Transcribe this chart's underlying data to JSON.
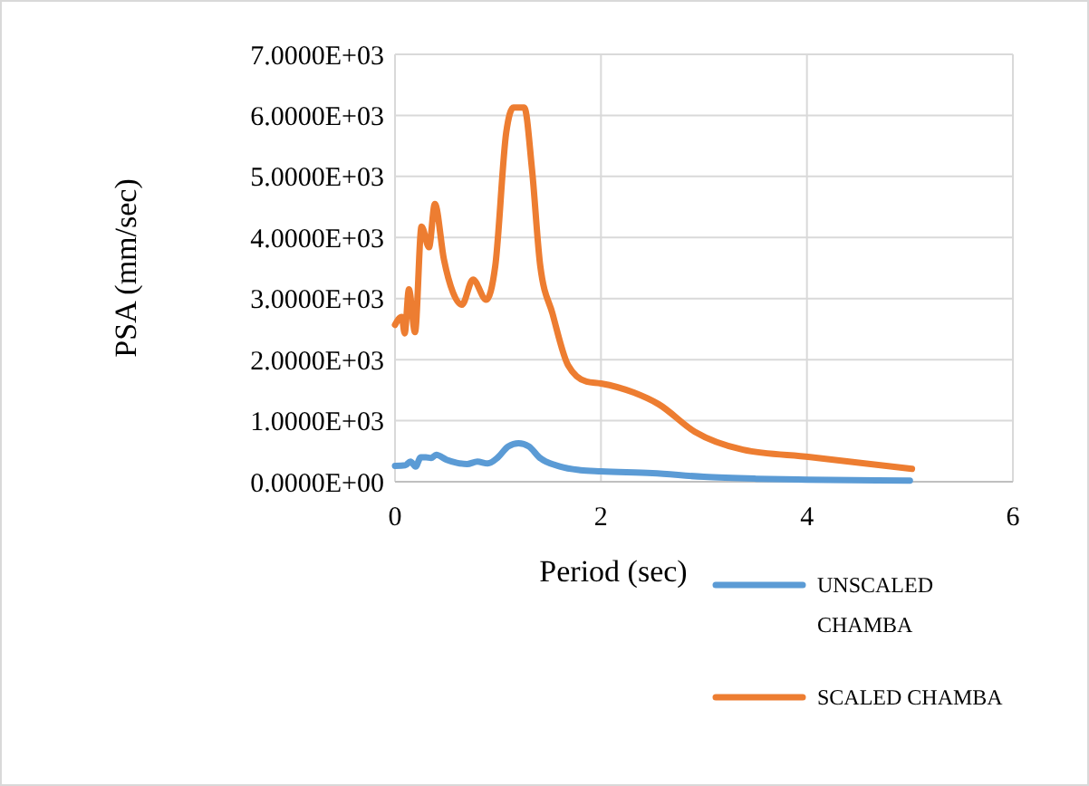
{
  "chart_data": {
    "type": "line",
    "xlabel": "Period (sec)",
    "ylabel": "PSA (mm/sec)",
    "xlim": [
      0,
      6
    ],
    "xticks": [
      0,
      2,
      4,
      6
    ],
    "ylim": [
      0,
      7000
    ],
    "yticks": [
      {
        "value": 0,
        "label": "0.0000E+00"
      },
      {
        "value": 1000,
        "label": "1.0000E+03"
      },
      {
        "value": 2000,
        "label": "2.0000E+03"
      },
      {
        "value": 3000,
        "label": "3.0000E+03"
      },
      {
        "value": 4000,
        "label": "4.0000E+03"
      },
      {
        "value": 5000,
        "label": "5.0000E+03"
      },
      {
        "value": 6000,
        "label": "6.0000E+03"
      },
      {
        "value": 7000,
        "label": "7.0000E+03"
      }
    ],
    "grid": true,
    "legend": "bottom right",
    "marker": "none",
    "line_style": "solid",
    "series": [
      {
        "name": "UNSCALED CHAMBA",
        "color": "#5b9bd5",
        "x": [
          0,
          0.1,
          0.15,
          0.2,
          0.25,
          0.3,
          0.35,
          0.4,
          0.5,
          0.6,
          0.7,
          0.8,
          0.9,
          1.0,
          1.1,
          1.2,
          1.3,
          1.4,
          1.6,
          1.8,
          2,
          2.5,
          3,
          3.5,
          4,
          5
        ],
        "values": [
          260,
          270,
          330,
          250,
          400,
          400,
          390,
          440,
          360,
          310,
          290,
          330,
          300,
          400,
          580,
          630,
          580,
          400,
          250,
          190,
          170,
          140,
          80,
          50,
          35,
          20
        ]
      },
      {
        "name": "SCALED CHAMBA",
        "color": "#ed7d31",
        "x": [
          0,
          0.065,
          0.094,
          0.135,
          0.194,
          0.258,
          0.33,
          0.387,
          0.475,
          0.563,
          0.65,
          0.757,
          0.886,
          0.974,
          1.08,
          1.15,
          1.255,
          1.33,
          1.41,
          1.53,
          1.68,
          1.86,
          2.0,
          2.32,
          2.56,
          2.91,
          3.38,
          4.03,
          5.02
        ],
        "values": [
          2570,
          2700,
          2430,
          3150,
          2450,
          4180,
          3840,
          4550,
          3640,
          3100,
          2900,
          3310,
          2980,
          3540,
          5720,
          6130,
          6130,
          5120,
          3540,
          2750,
          1910,
          1640,
          1610,
          1460,
          1270,
          820,
          525,
          405,
          210
        ]
      }
    ]
  }
}
